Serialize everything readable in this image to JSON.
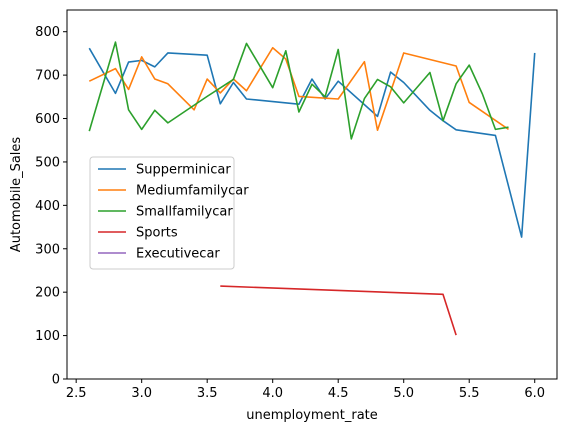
{
  "chart_data": {
    "type": "line",
    "title": "",
    "xlabel": "unemployment_rate",
    "ylabel": "Automobile_Sales",
    "xlim": [
      2.43,
      6.17
    ],
    "ylim": [
      0,
      850
    ],
    "xticks": [
      "2.5",
      "3.0",
      "3.5",
      "4.0",
      "4.5",
      "5.0",
      "5.5",
      "6.0"
    ],
    "xtick_values": [
      2.5,
      3.0,
      3.5,
      4.0,
      4.5,
      5.0,
      5.5,
      6.0
    ],
    "yticks": [
      "0",
      "100",
      "200",
      "300",
      "400",
      "500",
      "600",
      "700",
      "800"
    ],
    "ytick_values": [
      0,
      100,
      200,
      300,
      400,
      500,
      600,
      700,
      800
    ],
    "grid": false,
    "legend_position": "center-left",
    "series": [
      {
        "name": "Supperminicar",
        "color": "#1f77b4",
        "x": [
          2.6,
          2.8,
          2.9,
          3.0,
          3.1,
          3.2,
          3.5,
          3.6,
          3.7,
          3.8,
          4.2,
          4.3,
          4.4,
          4.5,
          4.8,
          4.9,
          5.0,
          5.2,
          5.3,
          5.4,
          5.7,
          5.9,
          6.0
        ],
        "y": [
          762,
          658,
          730,
          734,
          719,
          751,
          746,
          634,
          683,
          645,
          633,
          691,
          645,
          686,
          605,
          707,
          683,
          619,
          595,
          574,
          561,
          327,
          751
        ]
      },
      {
        "name": "Mediumfamilycar",
        "color": "#ff7f0e",
        "x": [
          2.6,
          2.8,
          2.9,
          3.0,
          3.1,
          3.2,
          3.4,
          3.5,
          3.6,
          3.7,
          3.8,
          4.0,
          4.1,
          4.2,
          4.5,
          4.7,
          4.8,
          5.0,
          5.4,
          5.5,
          5.8
        ],
        "y": [
          686,
          715,
          667,
          742,
          691,
          680,
          620,
          691,
          659,
          691,
          664,
          763,
          737,
          651,
          645,
          731,
          573,
          751,
          721,
          637,
          575
        ]
      },
      {
        "name": "Smallfamilycar",
        "color": "#2ca02c",
        "x": [
          2.6,
          2.8,
          2.9,
          3.0,
          3.1,
          3.2,
          3.5,
          3.7,
          3.8,
          4.0,
          4.1,
          4.2,
          4.3,
          4.4,
          4.5,
          4.6,
          4.7,
          4.8,
          4.9,
          5.0,
          5.2,
          5.3,
          5.4,
          5.5,
          5.6,
          5.7,
          5.8
        ],
        "y": [
          571,
          776,
          620,
          575,
          619,
          590,
          651,
          690,
          773,
          671,
          756,
          615,
          679,
          650,
          759,
          553,
          646,
          690,
          673,
          636,
          706,
          595,
          680,
          723,
          657,
          575,
          580
        ]
      },
      {
        "name": "Sports",
        "color": "#d62728",
        "x": [
          3.6,
          5.3,
          5.4
        ],
        "y": [
          214,
          195,
          101
        ]
      },
      {
        "name": "Executivecar",
        "color": "#9467bd",
        "x": [],
        "y": []
      }
    ]
  }
}
